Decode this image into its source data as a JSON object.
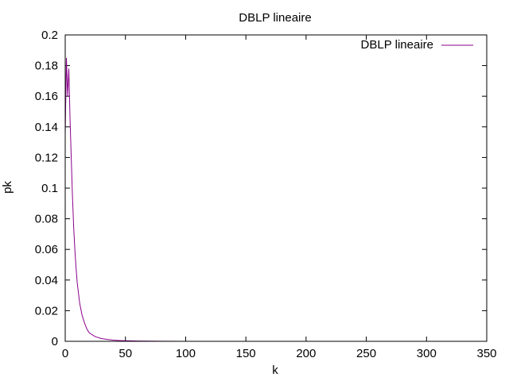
{
  "chart_data": {
    "type": "line",
    "title": "DBLP lineaire",
    "xlabel": "k",
    "ylabel": "pk",
    "xlim": [
      0,
      350
    ],
    "ylim": [
      0,
      0.2
    ],
    "x_ticks": [
      0,
      50,
      100,
      150,
      200,
      250,
      300,
      350
    ],
    "y_ticks": [
      0,
      0.02,
      0.04,
      0.06,
      0.08,
      0.1,
      0.12,
      0.14,
      0.16,
      0.18,
      0.2
    ],
    "x_tick_labels": [
      "0",
      "50",
      "100",
      "150",
      "200",
      "250",
      "300",
      "350"
    ],
    "y_tick_labels": [
      "0",
      "0.02",
      "0.04",
      "0.06",
      "0.08",
      "0.1",
      "0.12",
      "0.14",
      "0.16",
      "0.18",
      "0.2"
    ],
    "grid": false,
    "legend_position": "top-right",
    "series": [
      {
        "name": "DBLP lineaire",
        "color": "#8b008b",
        "points": [
          [
            0,
            0.135
          ],
          [
            1,
            0.185
          ],
          [
            2,
            0.16
          ],
          [
            3,
            0.178
          ],
          [
            4,
            0.145
          ],
          [
            5,
            0.12
          ],
          [
            6,
            0.095
          ],
          [
            7,
            0.075
          ],
          [
            8,
            0.06
          ],
          [
            9,
            0.048
          ],
          [
            10,
            0.038
          ],
          [
            12,
            0.025
          ],
          [
            14,
            0.017
          ],
          [
            16,
            0.012
          ],
          [
            18,
            0.008
          ],
          [
            20,
            0.0055
          ],
          [
            25,
            0.003
          ],
          [
            30,
            0.0018
          ],
          [
            35,
            0.0012
          ],
          [
            40,
            0.0008
          ],
          [
            45,
            0.0005
          ],
          [
            50,
            0.0004
          ],
          [
            55,
            0.0003
          ],
          [
            60,
            0.0002
          ],
          [
            70,
            0.0001
          ],
          [
            80,
            5e-05
          ],
          [
            100,
            2e-05
          ],
          [
            150,
            1e-05
          ],
          [
            200,
            0.0
          ],
          [
            250,
            0.0
          ],
          [
            300,
            0.0
          ],
          [
            340,
            0.0
          ]
        ]
      }
    ]
  }
}
